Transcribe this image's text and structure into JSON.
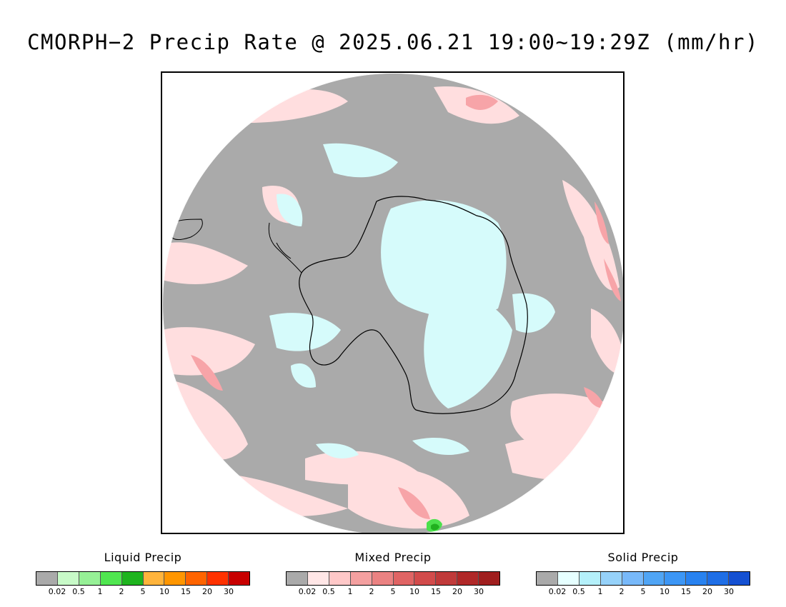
{
  "title": "CMORPH−2 Precip Rate @ 2025.06.21 19:00~19:29Z (mm/hr)",
  "map": {
    "projection": "south-polar-stereographic",
    "colors": {
      "no_precip": "#aaaaaa",
      "mixed_light": "#ffdedf",
      "mixed_moderate": "#f7a4a8",
      "mixed_heavy": "#e06a6e",
      "solid_light": "#d6fbfb",
      "liquid_light": "#4be04b",
      "liquid_heavy": "#21b01f",
      "coastline": "#000000"
    }
  },
  "legends": [
    {
      "id": "liquid",
      "title": "Liquid Precip",
      "colors": [
        "#aaaaaa",
        "#c8fac8",
        "#96f096",
        "#50e650",
        "#1eb41e",
        "#ffb43c",
        "#ff9600",
        "#ff6400",
        "#ff3200",
        "#c80000"
      ],
      "ticks": [
        "0.02",
        "0.5",
        "1",
        "2",
        "5",
        "10",
        "15",
        "20",
        "30"
      ]
    },
    {
      "id": "mixed",
      "title": "Mixed Precip",
      "colors": [
        "#aaaaaa",
        "#ffe6e6",
        "#ffc8c8",
        "#f4a0a0",
        "#eb8282",
        "#e06464",
        "#d24b4b",
        "#c03a3a",
        "#b02828",
        "#a01e1e"
      ],
      "ticks": [
        "0.02",
        "0.5",
        "1",
        "2",
        "5",
        "10",
        "15",
        "20",
        "30"
      ]
    },
    {
      "id": "solid",
      "title": "Solid Precip",
      "colors": [
        "#aaaaaa",
        "#e6ffff",
        "#b4f0fa",
        "#96d2fa",
        "#78b9fa",
        "#50a5f5",
        "#3c96f5",
        "#2882f0",
        "#1e6ee6",
        "#1450d2"
      ],
      "ticks": [
        "0.02",
        "0.5",
        "1",
        "2",
        "5",
        "10",
        "15",
        "20",
        "30"
      ]
    }
  ]
}
